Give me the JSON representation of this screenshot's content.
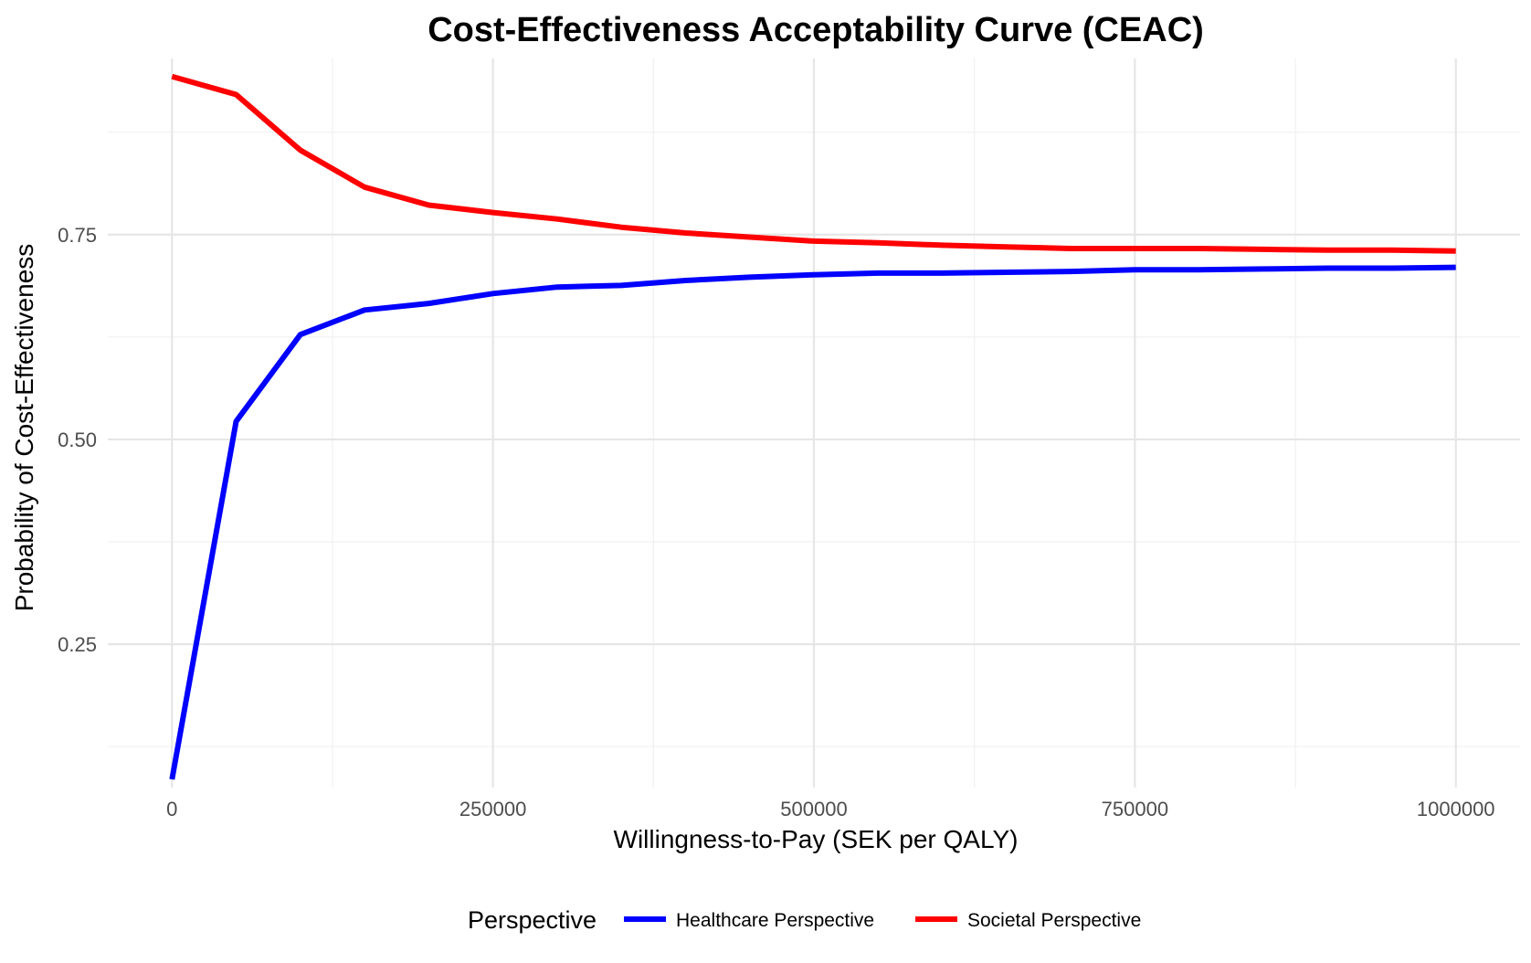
{
  "chart_data": {
    "type": "line",
    "title": "Cost-Effectiveness Acceptability Curve (CEAC)",
    "xlabel": "Willingness-to-Pay (SEK per QALY)",
    "ylabel": "Probability of Cost-Effectiveness",
    "xlim": [
      -50000,
      1050000
    ],
    "ylim": [
      0.075,
      0.965
    ],
    "x_ticks": [
      0,
      250000,
      500000,
      750000,
      1000000
    ],
    "x_tick_labels": [
      "0",
      "250000",
      "500000",
      "750000",
      "1000000"
    ],
    "y_ticks": [
      0.25,
      0.5,
      0.75
    ],
    "y_tick_labels": [
      "0.25",
      "0.50",
      "0.75"
    ],
    "grid": true,
    "legend": {
      "title": "Perspective",
      "position": "bottom"
    },
    "x": [
      0,
      50000,
      100000,
      150000,
      200000,
      250000,
      300000,
      350000,
      400000,
      450000,
      500000,
      550000,
      600000,
      650000,
      700000,
      750000,
      800000,
      850000,
      900000,
      950000,
      1000000
    ],
    "series": [
      {
        "name": "Healthcare Perspective",
        "color": "#0000ff",
        "values": [
          0.085,
          0.522,
          0.628,
          0.658,
          0.666,
          0.678,
          0.686,
          0.688,
          0.694,
          0.698,
          0.701,
          0.703,
          0.703,
          0.704,
          0.705,
          0.707,
          0.707,
          0.708,
          0.709,
          0.709,
          0.71
        ]
      },
      {
        "name": "Societal Perspective",
        "color": "#ff0000",
        "values": [
          0.943,
          0.921,
          0.853,
          0.808,
          0.786,
          0.777,
          0.769,
          0.759,
          0.752,
          0.747,
          0.742,
          0.74,
          0.737,
          0.735,
          0.733,
          0.733,
          0.733,
          0.732,
          0.731,
          0.731,
          0.73
        ]
      }
    ]
  }
}
